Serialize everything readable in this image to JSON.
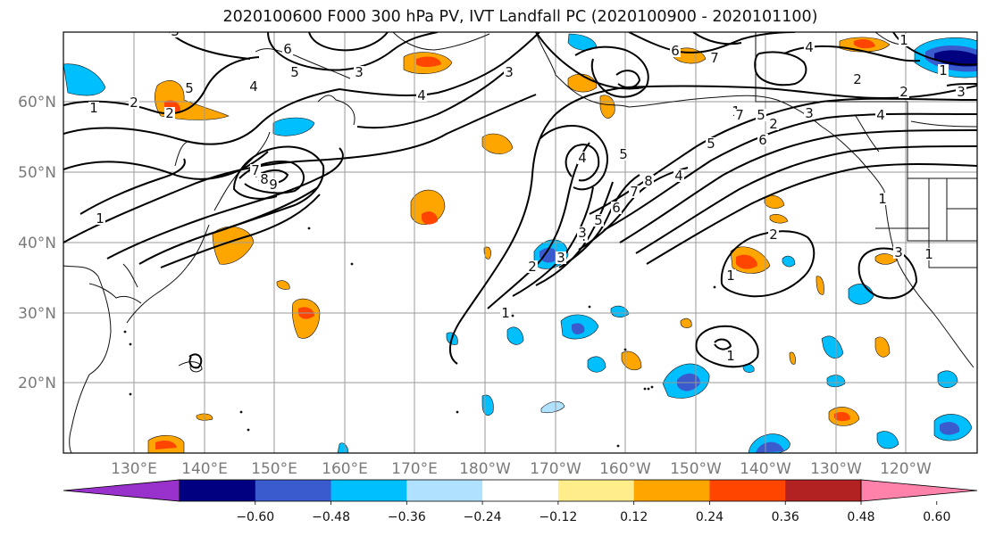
{
  "title": "2020100600 F000 300 hPa PV, IVT Landfall PC (2020100900 - 2020101100)",
  "lon_labels": [
    "130°E",
    "140°E",
    "150°E",
    "160°E",
    "170°E",
    "180°W",
    "170°W",
    "160°W",
    "150°W",
    "140°W",
    "130°W",
    "120°W"
  ],
  "lat_labels": [
    "60°N",
    "50°N",
    "40°N",
    "30°N",
    "20°N"
  ],
  "colorbar": {
    "ticks": [
      "−0.60",
      "−0.48",
      "−0.36",
      "−0.24",
      "−0.12",
      "0.12",
      "0.24",
      "0.36",
      "0.48",
      "0.60"
    ],
    "colors": [
      "#9932cc",
      "#000080",
      "#3a5bcd",
      "#00bfff",
      "#b0e2ff",
      "#ffffff",
      "#ffec8b",
      "#ffa500",
      "#ff4500",
      "#b22222",
      "#ff82ab"
    ]
  },
  "contour_labels": [
    "1",
    "2",
    "3",
    "4",
    "5",
    "6",
    "7",
    "8",
    "9",
    "1",
    "2",
    "3",
    "4",
    "5",
    "1",
    "2",
    "3",
    "4",
    "5",
    "6",
    "7",
    "8",
    "3",
    "4",
    "5",
    "6",
    "7",
    "1",
    "2",
    "3",
    "1",
    "1",
    "1",
    "1",
    "4",
    "3",
    "2",
    "1",
    "5",
    "2",
    "3",
    "4",
    "2",
    "1",
    "3",
    "4",
    "5",
    "6",
    "7"
  ]
}
